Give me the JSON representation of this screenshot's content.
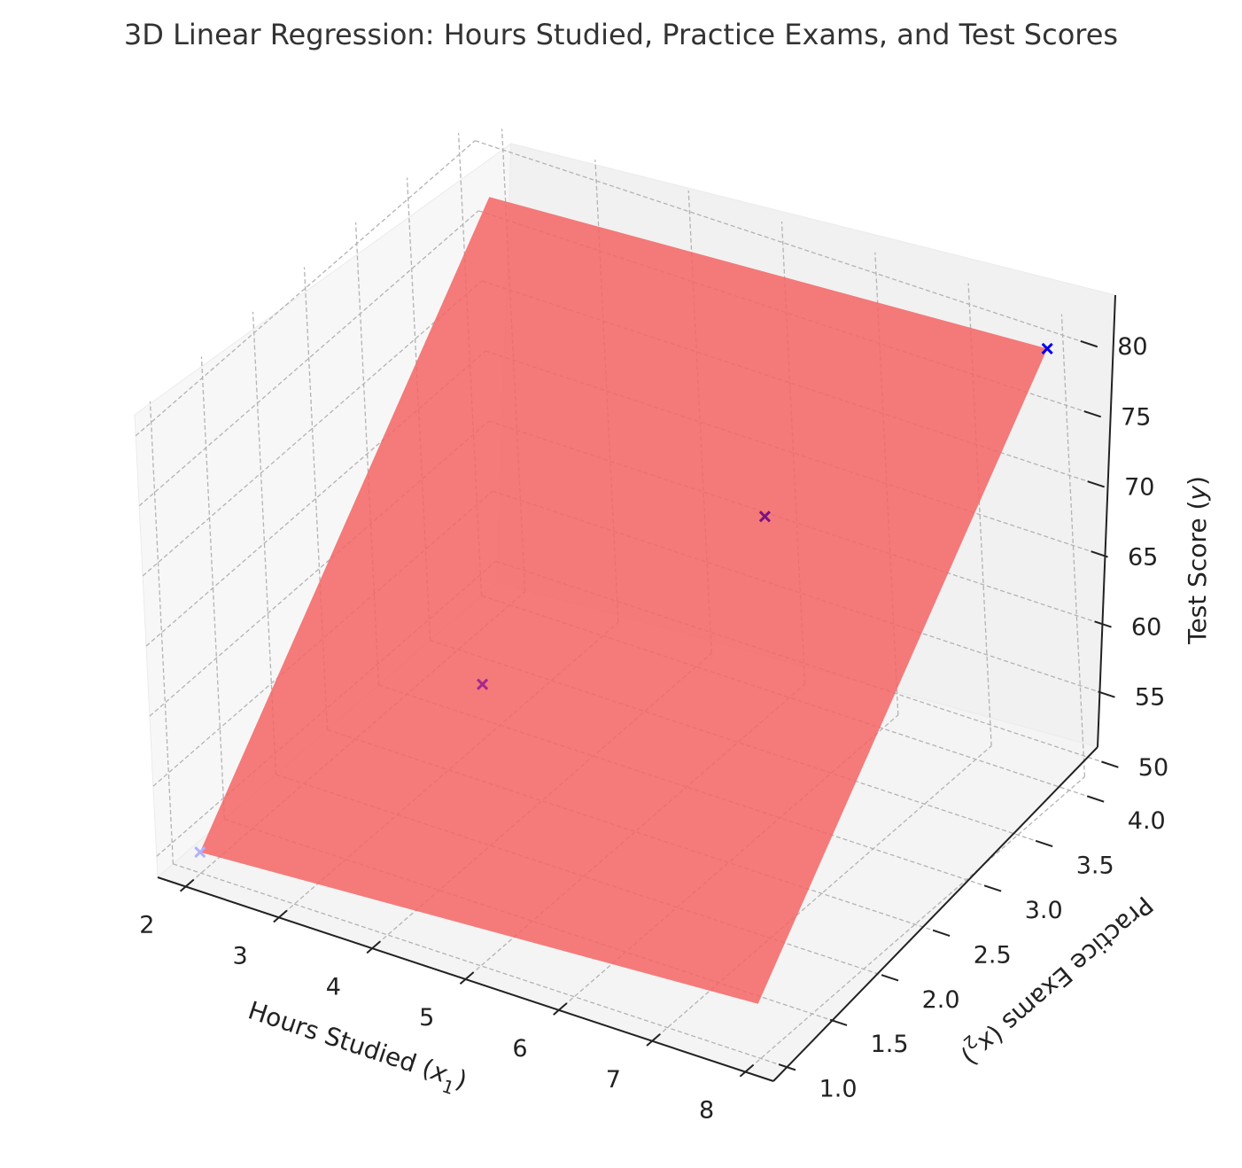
{
  "chart_data": {
    "type": "scatter",
    "title": "3D Linear Regression: Hours Studied, Practice Exams, and Test Scores",
    "xlabel": "Hours Studied (x1)",
    "ylabel": "Practice Exams (x2)",
    "zlabel": "Test Score (y)",
    "label_parts": {
      "x": {
        "prefix": "Hours Studied (",
        "var": "x",
        "sub": "1",
        "suffix": ")"
      },
      "y": {
        "prefix": "Practice Exams (",
        "var": "x",
        "sub": "2",
        "suffix": ")"
      },
      "z": {
        "prefix": "Test Score (",
        "var": "y",
        "suffix": ")"
      }
    },
    "xlim": [
      1.7,
      8.3
    ],
    "ylim": [
      0.85,
      4.15
    ],
    "zlim": [
      48.5,
      81.5
    ],
    "x_ticks": [
      "2",
      "3",
      "4",
      "5",
      "6",
      "7",
      "8"
    ],
    "y_ticks": [
      "1.0",
      "1.5",
      "2.0",
      "2.5",
      "3.0",
      "3.5",
      "4.0"
    ],
    "z_ticks": [
      "50",
      "55",
      "60",
      "65",
      "70",
      "75",
      "80"
    ],
    "grid": true,
    "series": [
      {
        "points": [
          {
            "x": 2,
            "y": 1,
            "z": 50,
            "color": "#b0b0ff"
          },
          {
            "x": 4,
            "y": 2,
            "z": 60,
            "color": "#a3298f"
          },
          {
            "x": 6,
            "y": 3,
            "z": 70,
            "color": "#7a1280"
          },
          {
            "x": 8,
            "y": 4,
            "z": 80,
            "color": "#0000ee"
          }
        ]
      }
    ],
    "plane": {
      "x_range": [
        2,
        8
      ],
      "y_range": [
        1,
        4
      ],
      "z_corners": [
        50,
        52.4,
        80,
        77.6
      ],
      "color": "#f46464",
      "opacity": 0.85
    }
  }
}
